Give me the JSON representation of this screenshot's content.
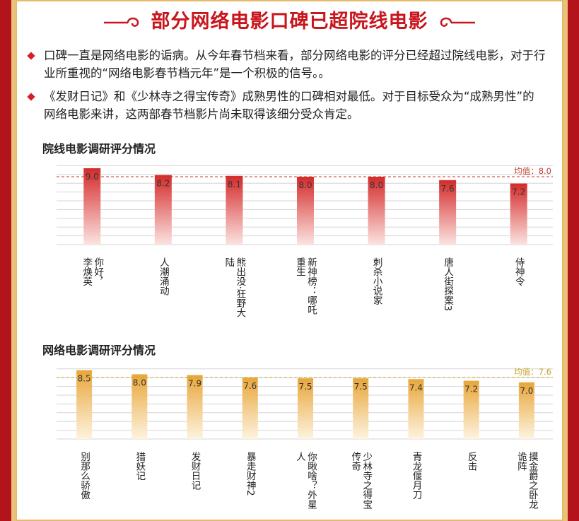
{
  "headline": "部分网络电影口碑已超院线电影",
  "bullets": [
    "口碑一直是网络电影的诟病。从今年春节档来看，部分网络电影的评分已经超过院线电影，对于行业所重视的“网络电影春节档元年”是一个积极的信号。。",
    "《发财日记》和《少林寺之得宝传奇》成熟男性的口碑相对最低。对于目标受众为“成熟男性”的网络电影来讲，这两部春节档影片尚未取得该细分受众肯定。"
  ],
  "chart_data": [
    {
      "type": "bar",
      "title": "院线电影调研评分情况",
      "categories": [
        "你好，李焕英",
        "人潮涌动",
        "熊出没·狂野大陆",
        "新神榜：哪吒重生",
        "刺杀小说家",
        "唐人街探案3",
        "侍神令"
      ],
      "category_lines": [
        [
          "你好，",
          "李焕英"
        ],
        [
          "人潮涌动"
        ],
        [
          "熊出没·狂野大",
          "陆"
        ],
        [
          "新神榜：哪吒",
          "重生"
        ],
        [
          "刺杀小说家"
        ],
        [
          "唐人街探案3"
        ],
        [
          "侍神令"
        ]
      ],
      "values": [
        9.0,
        8.2,
        8.1,
        8.0,
        8.0,
        7.6,
        7.2
      ],
      "value_labels": [
        "9.0",
        "8.2",
        "8.1",
        "8.0",
        "8.0",
        "7.6",
        "7.2"
      ],
      "reference_line": {
        "label": "均值：8.0",
        "value": 8.0
      },
      "ylim": [
        0,
        9.5
      ],
      "grid": true,
      "colors": {
        "bar_top": "#d42a2a",
        "bar_bottom": "#fbe3e0",
        "ref_line": "#c0392b",
        "ref_text": "#c0392b"
      }
    },
    {
      "type": "bar",
      "title": "网络电影调研评分情况",
      "categories": [
        "别那么骄傲",
        "猎妖记",
        "发财日记",
        "暴走财神2",
        "你瞅啥？外星人",
        "少林寺之得宝传奇",
        "青龙偃月刀",
        "反击",
        "摸金爵之卧龙诡阵"
      ],
      "category_lines": [
        [
          "别那么骄傲"
        ],
        [
          "猎妖记"
        ],
        [
          "发财日记"
        ],
        [
          "暴走财神2"
        ],
        [
          "你瞅啥？外星",
          "人"
        ],
        [
          "少林寺之得宝",
          "传奇"
        ],
        [
          "青龙偃月刀"
        ],
        [
          "反击"
        ],
        [
          "摸金爵之卧龙",
          "诡阵"
        ]
      ],
      "values": [
        8.5,
        8.0,
        7.9,
        7.6,
        7.5,
        7.5,
        7.4,
        7.2,
        7.0
      ],
      "value_labels": [
        "8.5",
        "8.0",
        "7.9",
        "7.6",
        "7.5",
        "7.5",
        "7.4",
        "7.2",
        "7.0"
      ],
      "reference_line": {
        "label": "均值：7.6",
        "value": 7.6
      },
      "ylim": [
        0,
        9.0
      ],
      "grid": true,
      "colors": {
        "bar_top": "#e9a63a",
        "bar_bottom": "#fdf3df",
        "ref_line": "#c9a227",
        "ref_text": "#c9a227"
      }
    }
  ]
}
